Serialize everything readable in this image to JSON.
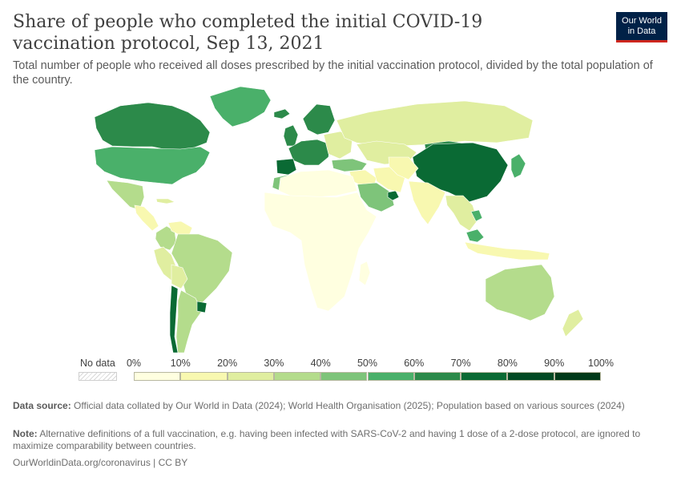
{
  "title": "Share of people who completed the initial COVID-19 vaccination protocol, Sep 13, 2021",
  "subtitle": "Total number of people who received all doses prescribed by the initial vaccination protocol, divided by the total population of the country.",
  "logo": {
    "line1": "Our World",
    "line2": "in Data",
    "bg_color": "#002147",
    "accent_color": "#ce261e"
  },
  "legend": {
    "no_data_label": "No data",
    "ticks": [
      "0%",
      "10%",
      "20%",
      "30%",
      "40%",
      "50%",
      "60%",
      "70%",
      "80%",
      "90%",
      "100%"
    ],
    "colors": [
      "#ffffe0",
      "#f8f8b0",
      "#e0eea0",
      "#b4dc8c",
      "#7ec47a",
      "#4ab06a",
      "#2c8a4a",
      "#0a6a34",
      "#024a24",
      "#013a1a"
    ]
  },
  "map_regions": [
    {
      "name": "Canada",
      "bin": 6
    },
    {
      "name": "Greenland",
      "bin": 5
    },
    {
      "name": "United States",
      "bin": 5
    },
    {
      "name": "Mexico",
      "bin": 3
    },
    {
      "name": "Central America",
      "bin": 1
    },
    {
      "name": "Cuba",
      "bin": 2
    },
    {
      "name": "Colombia",
      "bin": 3
    },
    {
      "name": "Venezuela",
      "bin": 1
    },
    {
      "name": "Peru",
      "bin": 2
    },
    {
      "name": "Brazil",
      "bin": 3
    },
    {
      "name": "Bolivia",
      "bin": 2
    },
    {
      "name": "Argentina",
      "bin": 3
    },
    {
      "name": "Chile",
      "bin": 7
    },
    {
      "name": "Uruguay",
      "bin": 7
    },
    {
      "name": "Iceland",
      "bin": 6
    },
    {
      "name": "United Kingdom",
      "bin": 6
    },
    {
      "name": "Scandinavia",
      "bin": 6
    },
    {
      "name": "Western Europe",
      "bin": 6
    },
    {
      "name": "Iberia",
      "bin": 7
    },
    {
      "name": "Eastern Europe",
      "bin": 2
    },
    {
      "name": "Russia",
      "bin": 2
    },
    {
      "name": "Kazakhstan",
      "bin": 2
    },
    {
      "name": "Mongolia",
      "bin": 6
    },
    {
      "name": "China",
      "bin": 7
    },
    {
      "name": "Japan",
      "bin": 5
    },
    {
      "name": "Turkey",
      "bin": 4
    },
    {
      "name": "Middle East",
      "bin": 1
    },
    {
      "name": "Saudi Arabia",
      "bin": 4
    },
    {
      "name": "UAE",
      "bin": 7
    },
    {
      "name": "Iran",
      "bin": 1
    },
    {
      "name": "Central Asia",
      "bin": 1
    },
    {
      "name": "India",
      "bin": 1
    },
    {
      "name": "Southeast Asia",
      "bin": 2
    },
    {
      "name": "Cambodia",
      "bin": 5
    },
    {
      "name": "Malaysia",
      "bin": 5
    },
    {
      "name": "Indonesia",
      "bin": 1
    },
    {
      "name": "Morocco",
      "bin": 4
    },
    {
      "name": "North Africa",
      "bin": 0
    },
    {
      "name": "Sub-Saharan Africa",
      "bin": 0
    },
    {
      "name": "Madagascar",
      "bin": 0
    },
    {
      "name": "Australia",
      "bin": 3
    },
    {
      "name": "New Zealand",
      "bin": 2
    }
  ],
  "footer": {
    "data_source_label": "Data source:",
    "data_source": "Official data collated by Our World in Data (2024); World Health Organisation (2025); Population based on various sources (2024)",
    "note_label": "Note:",
    "note": "Alternative definitions of a full vaccination, e.g. having been infected with SARS-CoV-2 and having 1 dose of a 2-dose protocol, are ignored to maximize comparability between countries.",
    "url": "OurWorldinData.org/coronavirus | CC BY"
  }
}
